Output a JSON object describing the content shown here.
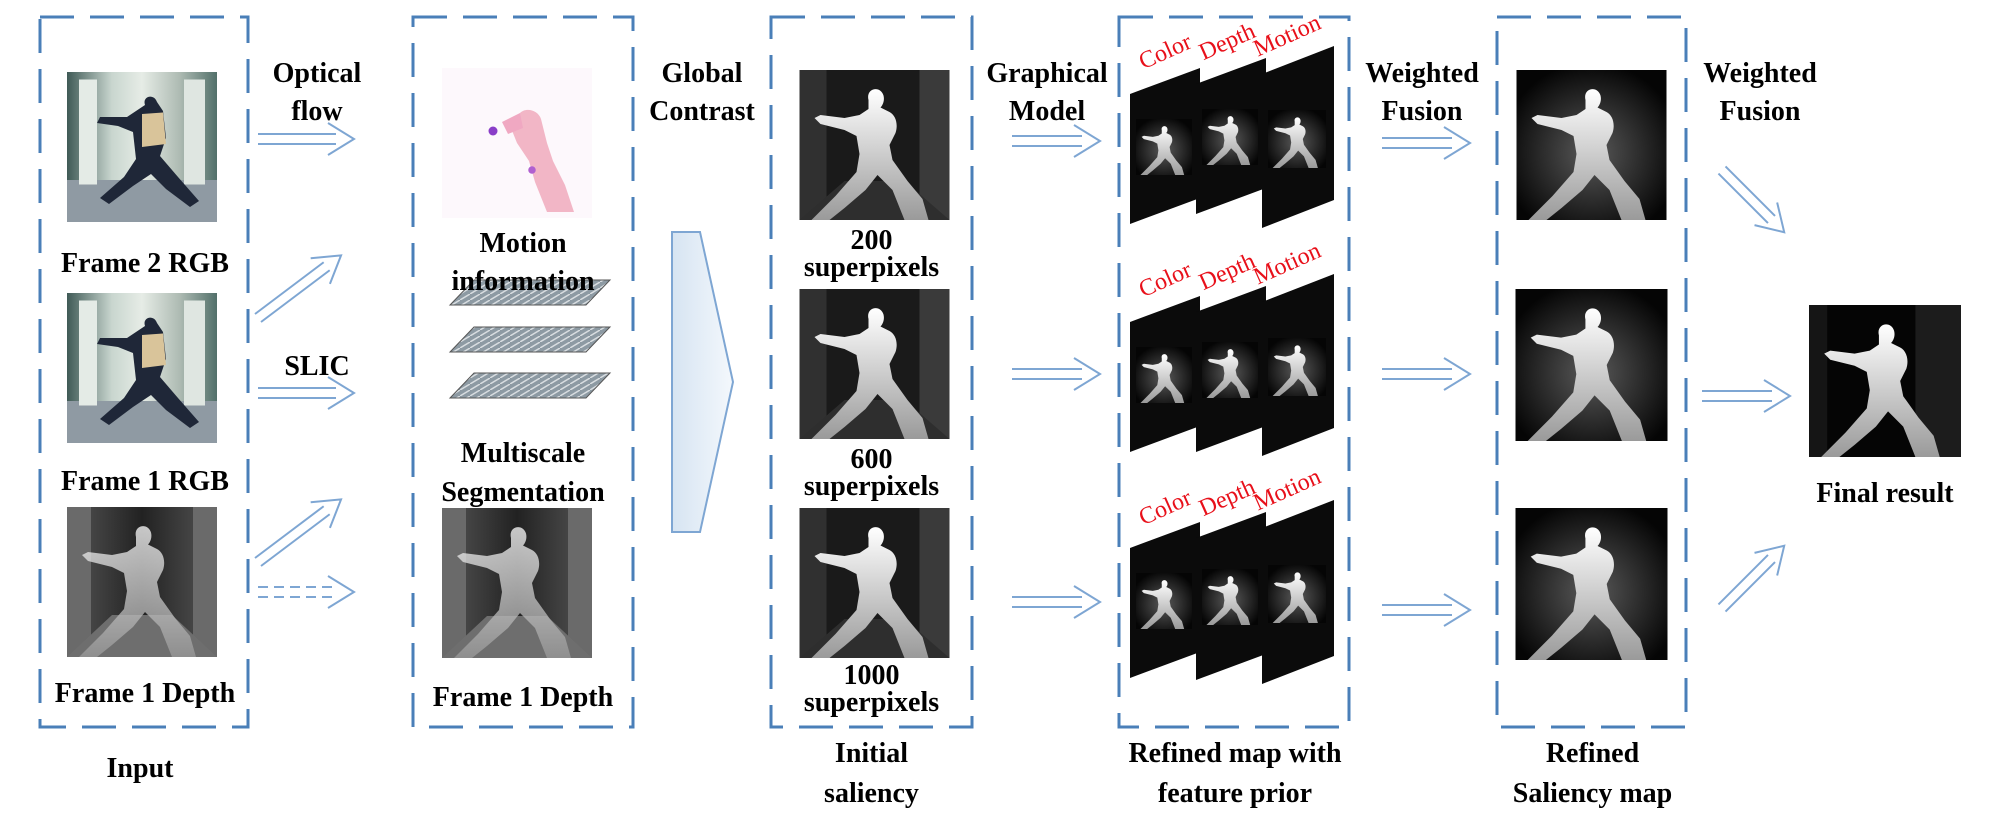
{
  "input": {
    "frame2_rgb": "Frame 2 RGB",
    "frame1_rgb": "Frame 1 RGB",
    "frame1_depth": "Frame 1 Depth",
    "caption": "Input"
  },
  "steps": {
    "optical_flow": [
      "Optical",
      "flow"
    ],
    "slic": "SLIC",
    "global_contrast": [
      "Global",
      "Contrast"
    ],
    "graphical_model": [
      "Graphical",
      "Model"
    ],
    "weighted_fusion_1": [
      "Weighted",
      "Fusion"
    ],
    "weighted_fusion_2": [
      "Weighted",
      "Fusion"
    ]
  },
  "stage2": {
    "motion": [
      "Motion",
      "information"
    ],
    "multiscale": [
      "Multiscale",
      "Segmentation"
    ],
    "depth": "Frame 1 Depth"
  },
  "stage3": {
    "s200": [
      "200",
      "superpixels"
    ],
    "s600": [
      "600",
      "superpixels"
    ],
    "s1000": [
      "1000",
      "superpixels"
    ],
    "caption": [
      "Initial",
      "saliency"
    ]
  },
  "stage4": {
    "features": [
      "Color",
      "Depth",
      "Motion"
    ],
    "caption": [
      "Refined map with",
      "feature prior"
    ]
  },
  "stage5": {
    "caption": [
      "Refined",
      "Saliency map"
    ]
  },
  "final": {
    "caption": "Final result"
  },
  "colors": {
    "box_border": "#4a7fb8",
    "arrow": "#7ea6d3",
    "feature_label": "#e8101a"
  }
}
